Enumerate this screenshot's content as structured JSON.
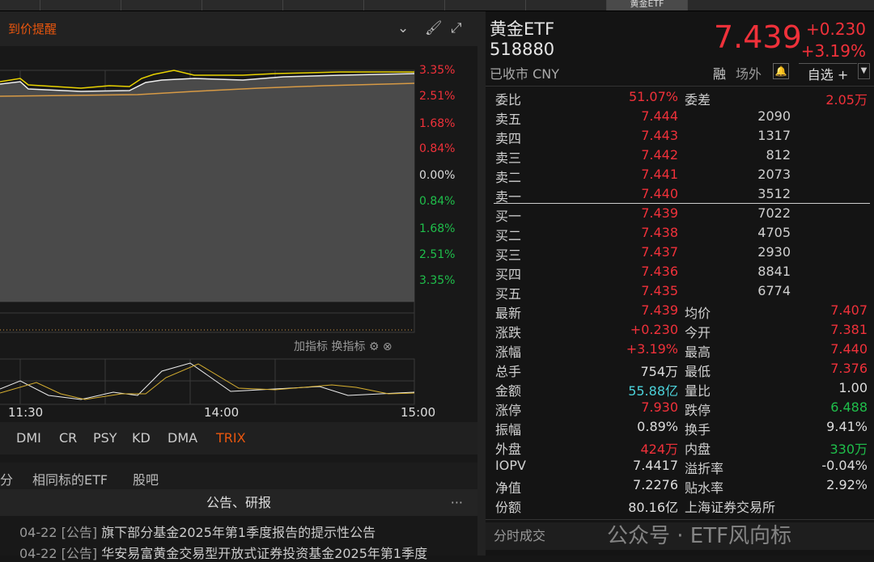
{
  "tabs": {
    "active": "黄金ETF"
  },
  "chart_header": {
    "alert_label": "到价提醒",
    "icons": [
      "circle-chevron-down-icon",
      "brush-icon",
      "expand-icon"
    ]
  },
  "price_axis": {
    "up": [
      "3.35%",
      "2.51%",
      "1.68%",
      "0.84%"
    ],
    "zero": "0.00%",
    "down": [
      "0.84%",
      "1.68%",
      "2.51%",
      "3.35%"
    ]
  },
  "indicator_tools": {
    "add": "加指标",
    "switch": "换指标"
  },
  "time_axis": [
    "11:30",
    "14:00",
    "15:00"
  ],
  "indicator_tabs": [
    "DMI",
    "CR",
    "PSY",
    "KD",
    "DMA",
    "TRIX"
  ],
  "active_indicator": "TRIX",
  "bottom_tabs": [
    "分",
    "相同标的ETF",
    "股吧"
  ],
  "announcements": {
    "title": "公告、研报",
    "items": [
      {
        "date": "04-22",
        "type": "[公告]",
        "title": "旗下部分基金2025年第1季度报告的提示性公告"
      },
      {
        "date": "04-22",
        "type": "[公告]",
        "title": "华安易富黄金交易型开放式证券投资基金2025年第1季度"
      }
    ]
  },
  "quote": {
    "name": "黄金ETF",
    "code": "518880",
    "status": "已收市 CNY",
    "price": "7.439",
    "change": "+0.230",
    "change_pct": "+3.19%",
    "margin": "融",
    "otc": "场外",
    "watch": "自选 +"
  },
  "wei": {
    "ratio_label": "委比",
    "ratio": "51.07%",
    "diff_label": "委差",
    "diff": "2.05万"
  },
  "asks": [
    {
      "label": "卖五",
      "price": "7.444",
      "vol": "2090"
    },
    {
      "label": "卖四",
      "price": "7.443",
      "vol": "1317"
    },
    {
      "label": "卖三",
      "price": "7.442",
      "vol": "812"
    },
    {
      "label": "卖二",
      "price": "7.441",
      "vol": "2073"
    },
    {
      "label": "卖一",
      "price": "7.440",
      "vol": "3512"
    }
  ],
  "bids": [
    {
      "label": "买一",
      "price": "7.439",
      "vol": "7022"
    },
    {
      "label": "买二",
      "price": "7.438",
      "vol": "4705"
    },
    {
      "label": "买三",
      "price": "7.437",
      "vol": "2930"
    },
    {
      "label": "买四",
      "price": "7.436",
      "vol": "8841"
    },
    {
      "label": "买五",
      "price": "7.435",
      "vol": "6774"
    }
  ],
  "stats": [
    {
      "l1": "最新",
      "v1": "7.439",
      "c1": "red",
      "l2": "均价",
      "v2": "7.407",
      "c2": "red"
    },
    {
      "l1": "涨跌",
      "v1": "+0.230",
      "c1": "red",
      "l2": "今开",
      "v2": "7.381",
      "c2": "red"
    },
    {
      "l1": "涨幅",
      "v1": "+3.19%",
      "c1": "red",
      "l2": "最高",
      "v2": "7.440",
      "c2": "red"
    },
    {
      "l1": "总手",
      "v1": "754万",
      "c1": "white",
      "l2": "最低",
      "v2": "7.376",
      "c2": "red"
    },
    {
      "l1": "金额",
      "v1": "55.88亿",
      "c1": "cyan",
      "l2": "量比",
      "v2": "1.00",
      "c2": "white"
    },
    {
      "l1": "涨停",
      "v1": "7.930",
      "c1": "red",
      "l2": "跌停",
      "v2": "6.488",
      "c2": "green"
    },
    {
      "l1": "振幅",
      "v1": "0.89%",
      "c1": "white",
      "l2": "换手",
      "v2": "9.41%",
      "c2": "white"
    },
    {
      "l1": "外盘",
      "v1": "424万",
      "c1": "red",
      "l2": "内盘",
      "v2": "330万",
      "c2": "green"
    },
    {
      "l1": "IOPV",
      "v1": "7.4417",
      "c1": "white",
      "l2": "溢折率",
      "v2": "-0.04%",
      "c2": "white"
    },
    {
      "l1": "净值",
      "v1": "7.2276",
      "c1": "white",
      "l2": "贴水率",
      "v2": "2.92%",
      "c2": "white"
    },
    {
      "l1": "份额",
      "v1": "80.16亿",
      "c1": "white",
      "l2": "上海证券交易所",
      "v2": "",
      "c2": "white"
    }
  ],
  "trades_label": "分时成交",
  "watermark": "公众号 · ETF风向标"
}
